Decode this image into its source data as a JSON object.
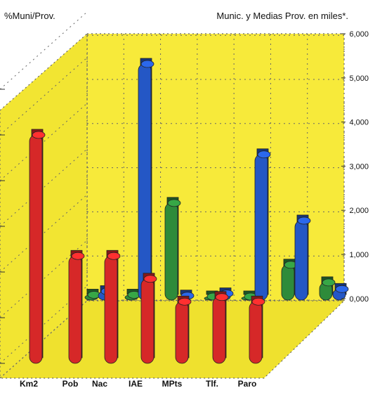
{
  "chart_data": {
    "type": "bar",
    "left_title": "%Muni/Prov.",
    "right_title": "Munic. y Medias Prov. en miles*.",
    "categories": [
      "Km2",
      "Pob",
      "Nac",
      "IAE",
      "MPts",
      "Tlf.",
      "Paro"
    ],
    "right_axis_ticks": [
      "6,000",
      "5,000",
      "4,000",
      "3,000",
      "2,000",
      "1,000",
      "0,000"
    ],
    "right_axis_range": [
      0,
      6
    ],
    "left_axis_range": [
      0,
      6
    ],
    "grid": true,
    "series": [
      {
        "axis": "left",
        "color": "#d62828",
        "values": [
          5.0,
          2.35,
          2.35,
          1.85,
          1.35,
          1.45,
          1.35
        ]
      },
      {
        "axis": "right",
        "color": "#2e8b3a",
        "values": [
          0.12,
          0.12,
          2.2,
          0.08,
          0.08,
          0.8,
          0.4
        ]
      },
      {
        "axis": "right",
        "color": "#2457c5",
        "values": [
          0.2,
          5.35,
          0.1,
          0.15,
          3.3,
          1.8,
          0.25
        ]
      }
    ]
  }
}
